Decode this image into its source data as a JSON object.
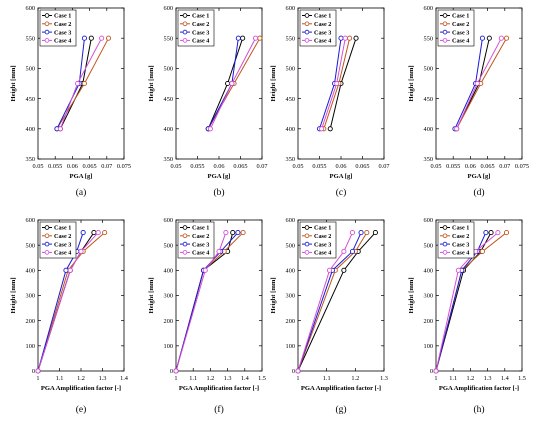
{
  "colors": {
    "Case 1": "#000000",
    "Case 2": "#c0561b",
    "Case 3": "#1a1ad6",
    "Case 4": "#d64fd6"
  },
  "chart_data": [
    {
      "type": "line",
      "panel_label": "(a)",
      "xlabel": "PGA [g]",
      "ylabel": "Height [mm]",
      "xlim": [
        0.05,
        0.075
      ],
      "ylim": [
        350,
        600
      ],
      "xticks": [
        "0.05",
        "0.055",
        "0.06",
        "0.065",
        "0.07",
        "0.075"
      ],
      "yticks": [
        "350",
        "400",
        "450",
        "500",
        "550",
        "600"
      ],
      "legend_position": "top-left",
      "series": [
        {
          "name": "Case 1",
          "x": [
            0.0565,
            0.063,
            0.0655
          ],
          "y": [
            400,
            475,
            550
          ]
        },
        {
          "name": "Case 2",
          "x": [
            0.0555,
            0.0635,
            0.0705
          ],
          "y": [
            400,
            475,
            550
          ]
        },
        {
          "name": "Case 3",
          "x": [
            0.0555,
            0.062,
            0.0635
          ],
          "y": [
            400,
            475,
            550
          ]
        },
        {
          "name": "Case 4",
          "x": [
            0.0565,
            0.0615,
            0.0685
          ],
          "y": [
            400,
            475,
            550
          ]
        }
      ]
    },
    {
      "type": "line",
      "panel_label": "(b)",
      "xlabel": "PGA [g]",
      "ylabel": "Height [mm]",
      "xlim": [
        0.05,
        0.07
      ],
      "ylim": [
        350,
        600
      ],
      "xticks": [
        "0.05",
        "0.055",
        "0.06",
        "0.065",
        "0.07"
      ],
      "yticks": [
        "350",
        "400",
        "450",
        "500",
        "550",
        "600"
      ],
      "legend_position": "top-left",
      "series": [
        {
          "name": "Case 1",
          "x": [
            0.0575,
            0.062,
            0.0655
          ],
          "y": [
            400,
            475,
            550
          ]
        },
        {
          "name": "Case 2",
          "x": [
            0.0575,
            0.0635,
            0.0695
          ],
          "y": [
            400,
            475,
            550
          ]
        },
        {
          "name": "Case 3",
          "x": [
            0.0575,
            0.063,
            0.0645
          ],
          "y": [
            400,
            475,
            550
          ]
        },
        {
          "name": "Case 4",
          "x": [
            0.058,
            0.063,
            0.0685
          ],
          "y": [
            400,
            475,
            550
          ]
        }
      ]
    },
    {
      "type": "line",
      "panel_label": "(c)",
      "xlabel": "PGA [g]",
      "ylabel": "Height [mm]",
      "xlim": [
        0.05,
        0.07
      ],
      "ylim": [
        350,
        600
      ],
      "xticks": [
        "0.05",
        "0.055",
        "0.06",
        "0.065",
        "0.07"
      ],
      "yticks": [
        "350",
        "400",
        "450",
        "500",
        "550",
        "600"
      ],
      "legend_position": "top-left",
      "series": [
        {
          "name": "Case 1",
          "x": [
            0.0575,
            0.06,
            0.0635
          ],
          "y": [
            400,
            475,
            550
          ]
        },
        {
          "name": "Case 2",
          "x": [
            0.056,
            0.0595,
            0.062
          ],
          "y": [
            400,
            475,
            550
          ]
        },
        {
          "name": "Case 3",
          "x": [
            0.055,
            0.0585,
            0.06
          ],
          "y": [
            400,
            475,
            550
          ]
        },
        {
          "name": "Case 4",
          "x": [
            0.0555,
            0.059,
            0.061
          ],
          "y": [
            400,
            475,
            550
          ]
        }
      ]
    },
    {
      "type": "line",
      "panel_label": "(d)",
      "xlabel": "PGA [g]",
      "ylabel": "Height [mm]",
      "xlim": [
        0.05,
        0.075
      ],
      "ylim": [
        350,
        600
      ],
      "xticks": [
        "0.05",
        "0.055",
        "0.06",
        "0.065",
        "0.07",
        "0.075"
      ],
      "yticks": [
        "350",
        "400",
        "450",
        "500",
        "550",
        "600"
      ],
      "legend_position": "top-left",
      "series": [
        {
          "name": "Case 1",
          "x": [
            0.056,
            0.0625,
            0.0655
          ],
          "y": [
            400,
            475,
            550
          ]
        },
        {
          "name": "Case 2",
          "x": [
            0.056,
            0.063,
            0.0705
          ],
          "y": [
            400,
            475,
            550
          ]
        },
        {
          "name": "Case 3",
          "x": [
            0.0555,
            0.0615,
            0.0635
          ],
          "y": [
            400,
            475,
            550
          ]
        },
        {
          "name": "Case 4",
          "x": [
            0.056,
            0.062,
            0.069
          ],
          "y": [
            400,
            475,
            550
          ]
        }
      ]
    },
    {
      "type": "line",
      "panel_label": "(e)",
      "xlabel": "PGA Amplification factor [-]",
      "ylabel": "Height [mm]",
      "xlim": [
        1,
        1.4
      ],
      "ylim": [
        0,
        600
      ],
      "xticks": [
        "1",
        "1.1",
        "1.2",
        "1.3",
        "1.4"
      ],
      "yticks": [
        "0",
        "100",
        "200",
        "300",
        "400",
        "500",
        "600"
      ],
      "legend_position": "top-left",
      "series": [
        {
          "name": "Case 1",
          "x": [
            1,
            1.15,
            1.2,
            1.26
          ],
          "y": [
            0,
            400,
            475,
            550
          ]
        },
        {
          "name": "Case 2",
          "x": [
            1,
            1.14,
            1.21,
            1.31
          ],
          "y": [
            0,
            400,
            475,
            550
          ]
        },
        {
          "name": "Case 3",
          "x": [
            1,
            1.13,
            1.18,
            1.21
          ],
          "y": [
            0,
            400,
            475,
            550
          ]
        },
        {
          "name": "Case 4",
          "x": [
            1,
            1.15,
            1.2,
            1.28
          ],
          "y": [
            0,
            400,
            475,
            550
          ]
        }
      ]
    },
    {
      "type": "line",
      "panel_label": "(f)",
      "xlabel": "PGA Amplification factor [-]",
      "ylabel": "Height [mm]",
      "xlim": [
        1,
        1.5
      ],
      "ylim": [
        0,
        600
      ],
      "xticks": [
        "1",
        "1.1",
        "1.2",
        "1.3",
        "1.4",
        "1.5"
      ],
      "yticks": [
        "0",
        "100",
        "200",
        "300",
        "400",
        "500",
        "600"
      ],
      "legend_position": "top-left",
      "series": [
        {
          "name": "Case 1",
          "x": [
            1,
            1.16,
            1.3,
            1.33
          ],
          "y": [
            0,
            400,
            475,
            550
          ]
        },
        {
          "name": "Case 2",
          "x": [
            1,
            1.16,
            1.28,
            1.39
          ],
          "y": [
            0,
            400,
            475,
            550
          ]
        },
        {
          "name": "Case 3",
          "x": [
            1,
            1.16,
            1.26,
            1.36
          ],
          "y": [
            0,
            400,
            475,
            550
          ]
        },
        {
          "name": "Case 4",
          "x": [
            1,
            1.17,
            1.25,
            1.29
          ],
          "y": [
            0,
            400,
            475,
            550
          ]
        }
      ]
    },
    {
      "type": "line",
      "panel_label": "(g)",
      "xlabel": "PGA Amplification factor [-]",
      "ylabel": "Height [mm]",
      "xlim": [
        1,
        1.3
      ],
      "ylim": [
        0,
        600
      ],
      "xticks": [
        "1",
        "1.1",
        "1.2",
        "1.3"
      ],
      "yticks": [
        "0",
        "100",
        "200",
        "300",
        "400",
        "500",
        "600"
      ],
      "legend_position": "top-left",
      "series": [
        {
          "name": "Case 1",
          "x": [
            1,
            1.16,
            1.21,
            1.27
          ],
          "y": [
            0,
            400,
            475,
            550
          ]
        },
        {
          "name": "Case 2",
          "x": [
            1,
            1.13,
            1.2,
            1.24
          ],
          "y": [
            0,
            400,
            475,
            550
          ]
        },
        {
          "name": "Case 3",
          "x": [
            1,
            1.12,
            1.19,
            1.22
          ],
          "y": [
            0,
            400,
            475,
            550
          ]
        },
        {
          "name": "Case 4",
          "x": [
            1,
            1.11,
            1.16,
            1.19
          ],
          "y": [
            0,
            400,
            475,
            550
          ]
        }
      ]
    },
    {
      "type": "line",
      "panel_label": "(h)",
      "xlabel": "PGA Amplification factor [-]",
      "ylabel": "Height [mm]",
      "xlim": [
        1,
        1.5
      ],
      "ylim": [
        0,
        600
      ],
      "xticks": [
        "1",
        "1.1",
        "1.2",
        "1.3",
        "1.4",
        "1.5"
      ],
      "yticks": [
        "0",
        "100",
        "200",
        "300",
        "400",
        "500",
        "600"
      ],
      "legend_position": "top-left",
      "series": [
        {
          "name": "Case 1",
          "x": [
            1,
            1.16,
            1.26,
            1.32
          ],
          "y": [
            0,
            400,
            475,
            550
          ]
        },
        {
          "name": "Case 2",
          "x": [
            1,
            1.15,
            1.27,
            1.41
          ],
          "y": [
            0,
            400,
            475,
            550
          ]
        },
        {
          "name": "Case 3",
          "x": [
            1,
            1.15,
            1.24,
            1.29
          ],
          "y": [
            0,
            400,
            475,
            550
          ]
        },
        {
          "name": "Case 4",
          "x": [
            1,
            1.13,
            1.23,
            1.36
          ],
          "y": [
            0,
            400,
            475,
            550
          ]
        }
      ]
    }
  ]
}
